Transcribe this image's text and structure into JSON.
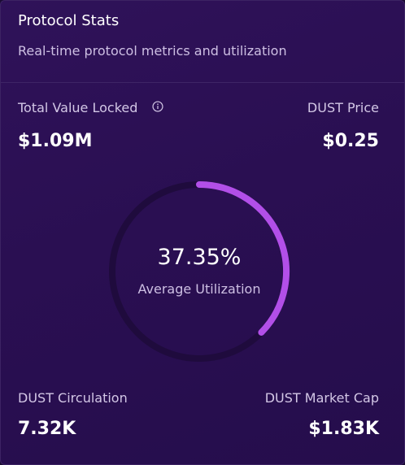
{
  "header": {
    "title": "Protocol Stats",
    "subtitle": "Real-time protocol metrics and utilization"
  },
  "tvl": {
    "label": "Total Value Locked",
    "value": "$1.09M",
    "icon": "info-icon"
  },
  "dust_price": {
    "label": "DUST Price",
    "value": "$0.25"
  },
  "utilization": {
    "value_text": "37.35%",
    "value": 37.35,
    "label": "Average Utilization"
  },
  "dust_circulation": {
    "label": "DUST Circulation",
    "value": "7.32K"
  },
  "dust_market_cap": {
    "label": "DUST Market Cap",
    "value": "$1.83K"
  },
  "colors": {
    "accent": "#b24fe8",
    "track": "#1f0b3d"
  }
}
